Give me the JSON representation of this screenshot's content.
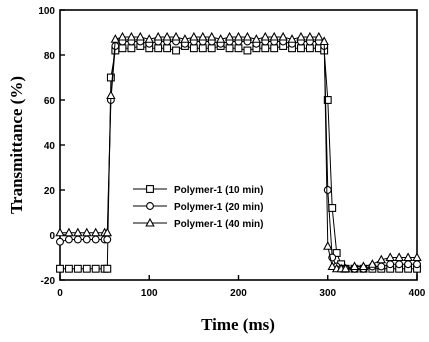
{
  "chart_data": {
    "type": "line",
    "title": "",
    "xlabel": "Time (ms)",
    "ylabel": "Transmittance (%)",
    "xlim": [
      0,
      400
    ],
    "ylim": [
      -20,
      100
    ],
    "xticks": [
      "0",
      "100",
      "200",
      "300",
      "400"
    ],
    "yticks": [
      "-20",
      "0",
      "20",
      "40",
      "60",
      "80",
      "100"
    ],
    "grid": false,
    "legend_position": "center",
    "series": [
      {
        "name": "Polymer-1 (10 min)",
        "marker": "square",
        "x": [
          0,
          10,
          20,
          30,
          40,
          50,
          53,
          57,
          62,
          70,
          80,
          90,
          100,
          110,
          120,
          130,
          140,
          150,
          160,
          170,
          180,
          190,
          200,
          210,
          220,
          230,
          240,
          250,
          260,
          270,
          280,
          290,
          296,
          300,
          305,
          310,
          315,
          320,
          330,
          340,
          350,
          360,
          370,
          380,
          390,
          400
        ],
        "y": [
          -15,
          -15,
          -15,
          -15,
          -15,
          -15,
          -15,
          70,
          82,
          83,
          83,
          84,
          83,
          83,
          83,
          82,
          84,
          83,
          83,
          83,
          84,
          83,
          83,
          82,
          83,
          83,
          83,
          84,
          83,
          83,
          83,
          83,
          82,
          60,
          12,
          -8,
          -13,
          -15,
          -15,
          -15,
          -15,
          -15,
          -15,
          -15,
          -15,
          -15
        ]
      },
      {
        "name": "Polymer-1 (20 min)",
        "marker": "circle",
        "x": [
          0,
          10,
          20,
          30,
          40,
          50,
          53,
          57,
          62,
          70,
          80,
          90,
          100,
          110,
          120,
          130,
          140,
          150,
          160,
          170,
          180,
          190,
          200,
          210,
          220,
          230,
          240,
          250,
          260,
          270,
          280,
          290,
          296,
          300,
          305,
          310,
          315,
          320,
          330,
          340,
          350,
          360,
          370,
          380,
          390,
          400
        ],
        "y": [
          -3,
          -2,
          -2,
          -2,
          -2,
          -2,
          -2,
          60,
          84,
          86,
          86,
          86,
          85,
          86,
          86,
          86,
          85,
          86,
          86,
          86,
          85,
          86,
          86,
          86,
          85,
          86,
          86,
          86,
          85,
          86,
          86,
          86,
          84,
          20,
          -10,
          -14,
          -15,
          -15,
          -15,
          -15,
          -14,
          -14,
          -13,
          -13,
          -13,
          -13
        ]
      },
      {
        "name": "Polymer-1 (40 min)",
        "marker": "triangle",
        "x": [
          0,
          10,
          20,
          30,
          40,
          50,
          53,
          57,
          62,
          70,
          80,
          90,
          100,
          110,
          120,
          130,
          140,
          150,
          160,
          170,
          180,
          190,
          200,
          210,
          220,
          230,
          240,
          250,
          260,
          270,
          280,
          290,
          296,
          300,
          305,
          310,
          315,
          320,
          330,
          340,
          350,
          360,
          370,
          380,
          390,
          400
        ],
        "y": [
          1,
          1,
          1,
          1,
          1,
          1,
          1,
          62,
          87,
          88,
          88,
          88,
          87,
          88,
          88,
          88,
          87,
          88,
          88,
          88,
          87,
          88,
          88,
          88,
          87,
          88,
          88,
          88,
          87,
          88,
          88,
          88,
          86,
          -5,
          -14,
          -15,
          -15,
          -15,
          -14,
          -14,
          -13,
          -11,
          -10,
          -10,
          -10,
          -10
        ]
      }
    ]
  }
}
